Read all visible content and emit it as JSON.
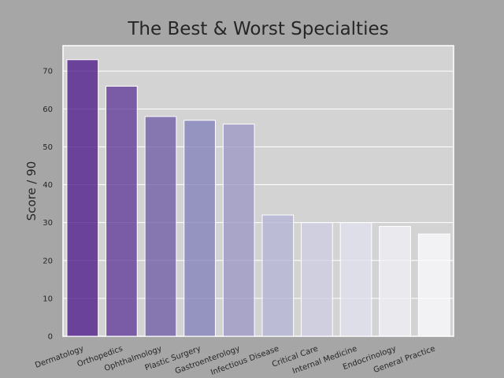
{
  "chart_data": {
    "type": "bar",
    "title": "The Best & Worst Specialties",
    "xlabel": "",
    "ylabel": "Score / 90",
    "categories": [
      "Dermatology",
      "Orthopedics",
      "Ophthalmology",
      "Plastic Surgery",
      "Gastroenterology",
      "Infectious Disease",
      "Critical Care",
      "Internal Medicine",
      "Endocrinology",
      "General Practice"
    ],
    "values": [
      73,
      66,
      58,
      57,
      56,
      32,
      30,
      30,
      29,
      27
    ],
    "ylim": [
      0,
      76.7
    ],
    "yticks": [
      0,
      10,
      20,
      30,
      40,
      50,
      60,
      70
    ],
    "grid": true,
    "colors": {
      "figure_background": "#a6a6a6",
      "plot_background": "#d3d3d3",
      "bar_palette": [
        "#3f007d",
        "#54278f",
        "#6a51a3",
        "#807dba",
        "#9e9ac8",
        "#bcbddc",
        "#dadaeb",
        "#efedf5",
        "#fcfbfd",
        "#ffffff"
      ]
    }
  }
}
